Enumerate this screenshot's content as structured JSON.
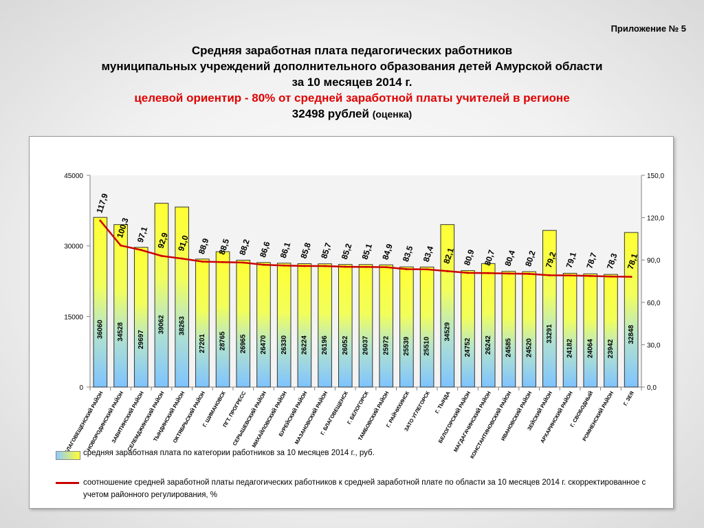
{
  "header": {
    "appendix": "Приложение № 5",
    "title_line1": "Средняя заработная плата педагогических работников",
    "title_line2": "муниципальных учреждений дополнительного образования детей Амурской области",
    "title_line3": "за 10 месяцев  2014 г.",
    "target_line": "целевой ориентир  - 80% от средней заработной платы учителей в регионе",
    "target_value": "32498 рублей",
    "target_note": "(оценка)"
  },
  "chart_data": {
    "type": "bar",
    "categories": [
      "БЛАГОВЕЩЕНСКИЙ РАЙОН",
      "НОВОРОДИНСКИЙ РАЙОН",
      "ЗАВИТИНСКИЙ РАЙОН",
      "СЕЛЕМДЖИНСКИЙ РАЙОН",
      "ТЫНДИНСКИЙ РАЙОН",
      "ОКТЯБРЬСКИЙ РАЙОН",
      "Г. ШИМАНОВСК",
      "ПГТ. ПРОГРЕСС",
      "СЕРЫШЕВСКИЙ РАЙОН",
      "МИХАЙЛОВСКИЙ РАЙОН",
      "БУРЕЙСКИЙ РАЙОН",
      "МАЗАНОВСКИЙ РАЙОН",
      "Г. БЛАГОВЕЩЕНСК",
      "Г. БЕЛОГОРСК",
      "ТАМБОВСКИЙ РАЙОН",
      "Г. РАЙЧИХИНСК",
      "ЗАТО УГЛЕГОРСК",
      "Г. ТЫНДА",
      "БЕЛОГОРСКИЙ РАЙОН",
      "МАГДАГАЧИНСКИЙ РАЙОН",
      "КОНСТАНТИНОВСКИЙ РАЙОН",
      "ИВАНОВСКИЙ РАЙОН",
      "ЗЕЙСКИЙ РАЙОН",
      "АРХАРИНСКИЙ РАЙОН",
      "Г. СВОБОДНЫЙ",
      "РОМНЕНСКИЙ РАЙОН",
      "Г. ЗЕЯ"
    ],
    "series": [
      {
        "name": "средняя заработная плата по категории работников  за 10 месяцев 2014 г., руб.",
        "axis": "left",
        "values": [
          36060,
          34528,
          29697,
          39062,
          38263,
          27201,
          28765,
          26965,
          26470,
          26330,
          26224,
          26196,
          26052,
          26037,
          25972,
          25539,
          25510,
          34529,
          24752,
          26242,
          24585,
          24520,
          33291,
          24182,
          24064,
          23942,
          32848
        ],
        "labels": [
          "36060",
          "34528",
          "29697",
          "39062",
          "38263",
          "27201",
          "28765",
          "26965",
          "26470",
          "26330",
          "26224",
          "26196",
          "26052",
          "26037",
          "25972",
          "25539",
          "25510",
          "34529",
          "24752",
          "26242",
          "24585",
          "24520",
          "33291",
          "24182",
          "24064",
          "23942",
          "32848"
        ]
      },
      {
        "name": "соотношение средней заработной платы педагогических работников к  средней заработной плате по области за 10 месяцев 2014 г. скорректированное с учетом районного регулирования, %",
        "axis": "right",
        "type": "line",
        "values": [
          117.9,
          100.3,
          97.1,
          92.9,
          91.0,
          88.9,
          88.5,
          88.2,
          86.6,
          86.1,
          85.8,
          85.7,
          85.2,
          85.1,
          84.9,
          83.5,
          83.4,
          82.1,
          80.9,
          80.7,
          80.4,
          80.2,
          79.2,
          79.1,
          78.7,
          78.3,
          78.1
        ],
        "labels": [
          "117,9",
          "100,3",
          "97,1",
          "92,9",
          "91,0",
          "88,9",
          "88,5",
          "88,2",
          "86,6",
          "86,1",
          "85,8",
          "85,7",
          "85,2",
          "85,1",
          "84,9",
          "83,5",
          "83,4",
          "82,1",
          "80,9",
          "80,7",
          "80,4",
          "80,2",
          "79,2",
          "79,1",
          "78,7",
          "78,3",
          "78,1"
        ]
      }
    ],
    "ylim_left": [
      0,
      45000
    ],
    "yticks_left": [
      "0",
      "15000",
      "30000",
      "45000"
    ],
    "ylim_right": [
      0,
      150
    ],
    "yticks_right": [
      "0,0",
      "30,0",
      "60,0",
      "90,0",
      "120,0",
      "150,0"
    ],
    "grid": false,
    "legend_position": "bottom",
    "colors": {
      "bar_top": "#ffff33",
      "bar_bottom": "#7ec3ff",
      "line": "#cc0000"
    }
  }
}
